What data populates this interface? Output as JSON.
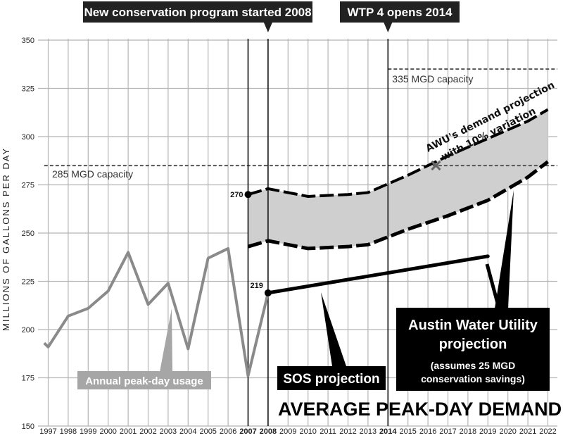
{
  "chart_data": {
    "type": "line",
    "title": "AVERAGE PEAK-DAY DEMAND",
    "ylabel": "MILLIONS OF GALLONS PER DAY",
    "xlabel": "",
    "ylim": [
      150,
      350
    ],
    "y_ticks": [
      "150",
      "175",
      "200",
      "225",
      "250",
      "275",
      "300",
      "325",
      "350"
    ],
    "x_ticks": [
      "1997",
      "1998",
      "1999",
      "2000",
      "2001",
      "2002",
      "2003",
      "2004",
      "2005",
      "2006",
      "2007",
      "2008",
      "2009",
      "2010",
      "2011",
      "2012",
      "2013",
      "2014",
      "2015",
      "2016",
      "2017",
      "2018",
      "2019",
      "2020",
      "2021",
      "2022"
    ],
    "x_ticks_bold": [
      "2007",
      "2008",
      "2014"
    ],
    "grid": true,
    "series": [
      {
        "name": "Annual peak-day usage",
        "color": "#8a8a8a",
        "x": [
          1996.8,
          1997,
          1998,
          1999,
          2000,
          2001,
          2002,
          2003,
          2004,
          2005,
          2006,
          2007,
          2008
        ],
        "y": [
          193,
          191,
          207,
          211,
          220,
          240,
          213,
          224,
          190,
          237,
          242,
          176,
          219
        ]
      },
      {
        "name": "SOS projection",
        "color": "#000000",
        "x": [
          2008,
          2019
        ],
        "y": [
          219,
          238
        ]
      },
      {
        "name": "AWU's demand projection with 10% variation",
        "color": "#000000",
        "x": [
          2007,
          2008,
          2010,
          2012,
          2013,
          2015,
          2017,
          2019,
          2021,
          2022
        ],
        "y": [
          270,
          273,
          269,
          270,
          271,
          280,
          290,
          299,
          308,
          314
        ]
      },
      {
        "name": "Austin Water Utility projection",
        "color": "#000000",
        "x": [
          2007,
          2008,
          2010,
          2012,
          2013,
          2015,
          2017,
          2019,
          2021,
          2022
        ],
        "y": [
          243,
          246,
          242,
          243,
          244,
          252,
          259,
          267,
          279,
          287
        ]
      }
    ],
    "capacity_lines": [
      {
        "label": "285 MGD capacity",
        "value": 285,
        "from": 1996.8
      },
      {
        "label": "335 MGD capacity",
        "value": 335,
        "from": 2014
      }
    ],
    "vertical_markers": [
      {
        "year": 2007,
        "banner": ""
      },
      {
        "year": 2008,
        "banner": "New conservation program started 2008"
      },
      {
        "year": 2014,
        "banner": "WTP 4 opens 2014"
      }
    ],
    "point_labels": [
      {
        "text": "270",
        "x": 2007,
        "y": 270
      },
      {
        "text": "219",
        "x": 2008,
        "y": 219
      }
    ],
    "cross_marker": {
      "x": 2016.4,
      "y": 285
    },
    "annotations": {
      "awu_curve_line1": "AWU's demand projection",
      "awu_curve_line2": "with 10% variation",
      "usage_label": "Annual peak-day usage",
      "sos_label": "SOS projection",
      "awu_box_line1": "Austin Water Utility",
      "awu_box_line2": "projection",
      "awu_box_line3": "(assumes 25 MGD",
      "awu_box_line4": "conservation savings)"
    },
    "colors": {
      "band_fill": "#cfcfcf",
      "usage_line": "#8a8a8a",
      "grid": "#b5b5b5",
      "capacity_line": "#555555",
      "banner_bg": "#222222",
      "usage_label_bg": "#a6a6a6"
    }
  }
}
